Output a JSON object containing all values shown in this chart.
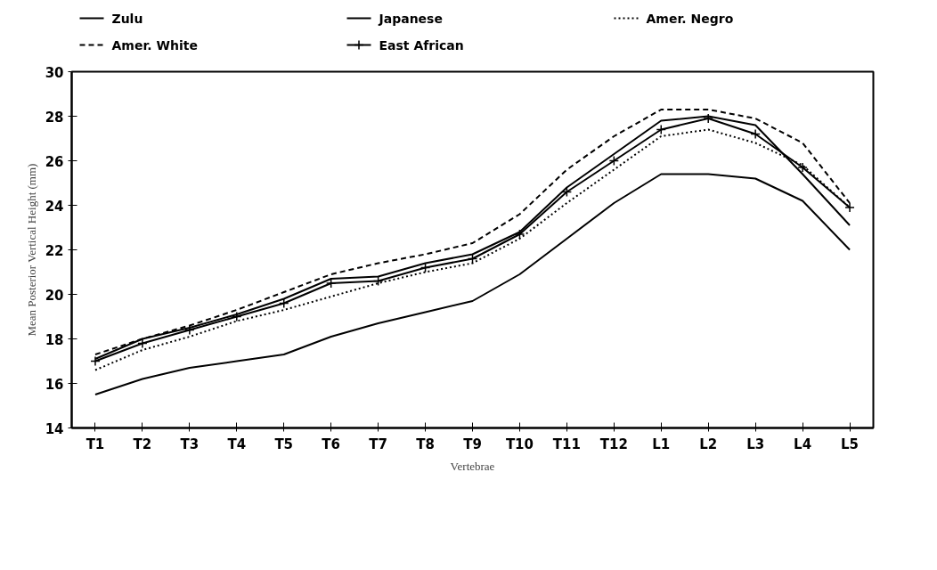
{
  "chart_data": {
    "type": "line",
    "xlabel": "Vertebrae",
    "ylabel": "Mean Posterior Vertical Height (mm)",
    "categories": [
      "T1",
      "T2",
      "T3",
      "T4",
      "T5",
      "T6",
      "T7",
      "T8",
      "T9",
      "T10",
      "T11",
      "T12",
      "L1",
      "L2",
      "L3",
      "L4",
      "L5"
    ],
    "series": [
      {
        "name": "Zulu",
        "color": "#000000",
        "line_style": "solid",
        "marker": "none",
        "values": [
          15.5,
          16.2,
          16.7,
          17.0,
          17.3,
          18.1,
          18.7,
          19.2,
          19.7,
          20.9,
          22.5,
          24.1,
          25.4,
          25.4,
          25.2,
          24.2,
          22.0
        ]
      },
      {
        "name": "Japanese",
        "color": "#000000",
        "line_style": "solid",
        "marker": "none",
        "values": [
          17.1,
          18.0,
          18.5,
          19.1,
          19.8,
          20.7,
          20.8,
          21.4,
          21.8,
          22.8,
          24.8,
          26.3,
          27.8,
          28.0,
          27.6,
          25.4,
          23.1
        ]
      },
      {
        "name": "Amer. Negro",
        "color": "#000000",
        "line_style": "dotted",
        "marker": "none",
        "values": [
          16.6,
          17.5,
          18.1,
          18.8,
          19.3,
          19.9,
          20.5,
          21.0,
          21.4,
          22.5,
          24.1,
          25.6,
          27.1,
          27.4,
          26.8,
          25.8,
          23.9
        ]
      },
      {
        "name": "Amer. White",
        "color": "#000000",
        "line_style": "dashed",
        "marker": "none",
        "values": [
          17.3,
          18.0,
          18.6,
          19.3,
          20.1,
          20.9,
          21.4,
          21.8,
          22.3,
          23.6,
          25.6,
          27.1,
          28.3,
          28.3,
          27.9,
          26.8,
          24.1
        ]
      },
      {
        "name": "East African",
        "color": "#000000",
        "line_style": "solid",
        "marker": "cross",
        "values": [
          17.0,
          17.8,
          18.4,
          19.0,
          19.6,
          20.5,
          20.6,
          21.2,
          21.6,
          22.7,
          24.6,
          26.0,
          27.4,
          27.9,
          27.2,
          25.7,
          23.9
        ]
      }
    ],
    "ylim": [
      14,
      30
    ],
    "yticks": [
      14,
      16,
      18,
      20,
      22,
      24,
      26,
      28,
      30
    ],
    "grid": false,
    "legend": "top"
  }
}
